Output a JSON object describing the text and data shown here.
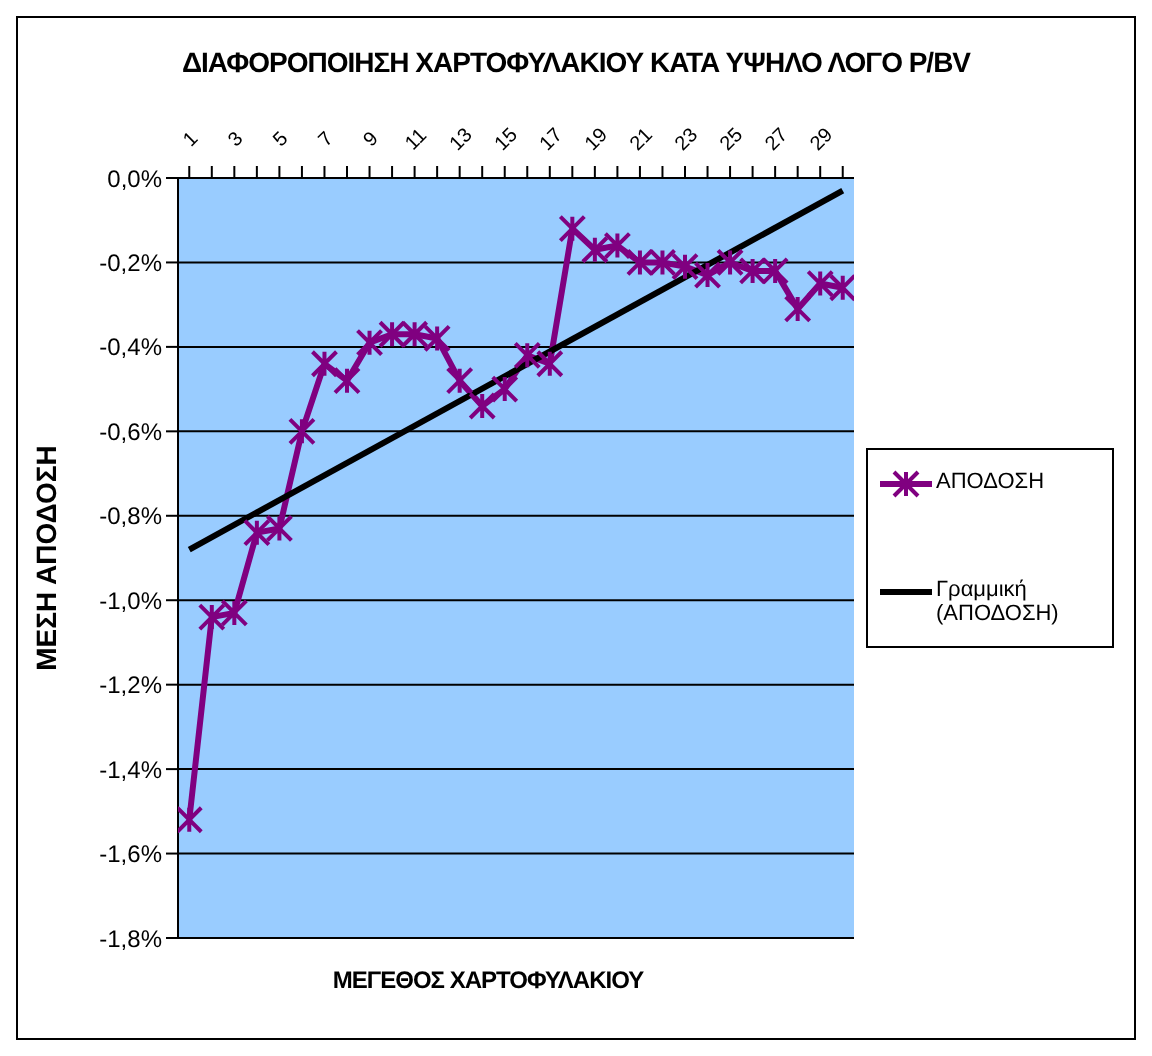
{
  "chart_data": {
    "type": "line",
    "title": "ΔΙΑΦΟΡΟΠΟΙΗΣΗ ΧΑΡΤΟΦΥΛΑΚΙΟΥ ΚΑΤΑ ΥΨΗΛΟ ΛΟΓΟ P/BV",
    "xlabel": "ΜΕΓΕΘΟΣ ΧΑΡΤΟΦΥΛΑΚΙΟΥ",
    "ylabel": "ΜΕΣΗ ΑΠΟΔΟΣΗ",
    "xlim": [
      0.5,
      30.5
    ],
    "xticks": [
      1,
      {
        "value": 2,
        "label": null
      },
      3,
      {
        "value": 4,
        "label": null
      },
      5,
      {
        "value": 6,
        "label": null
      },
      7,
      {
        "value": 8,
        "label": null
      },
      9,
      {
        "value": 10,
        "label": null
      },
      11,
      {
        "value": 12,
        "label": null
      },
      13,
      {
        "value": 14,
        "label": null
      },
      15,
      {
        "value": 16,
        "label": null
      },
      17,
      {
        "value": 18,
        "label": null
      },
      19,
      {
        "value": 20,
        "label": null
      },
      21,
      {
        "value": 22,
        "label": null
      },
      23,
      {
        "value": 24,
        "label": null
      },
      25,
      {
        "value": 26,
        "label": null
      },
      27,
      {
        "value": 28,
        "label": null
      },
      29,
      {
        "value": 30,
        "label": null
      }
    ],
    "ylim": [
      -1.8,
      0
    ],
    "yticks": [
      {
        "value": 0,
        "label": "0,0%"
      },
      {
        "value": -0.2,
        "label": "-0,2%"
      },
      {
        "value": -0.4,
        "label": "-0,4%"
      },
      {
        "value": -0.6,
        "label": "-0,6%"
      },
      {
        "value": -0.8,
        "label": "-0,8%"
      },
      {
        "value": -1.0,
        "label": "-1,0%"
      },
      {
        "value": -1.2,
        "label": "-1,2%"
      },
      {
        "value": -1.4,
        "label": "-1,4%"
      },
      {
        "value": -1.6,
        "label": "-1,6%"
      },
      {
        "value": -1.8,
        "label": "-1,8%"
      }
    ],
    "grid": "y",
    "legend": "right",
    "series": [
      {
        "name": "ΑΠΟΔΟΣΗ",
        "color": "#800080",
        "marker": "cross",
        "x": [
          1,
          2,
          3,
          4,
          5,
          6,
          7,
          8,
          9,
          10,
          11,
          12,
          13,
          14,
          15,
          16,
          17,
          18,
          19,
          20,
          21,
          22,
          23,
          24,
          25,
          26,
          27,
          28,
          29,
          30
        ],
        "values": [
          -1.52,
          -1.04,
          -1.03,
          -0.84,
          -0.83,
          -0.6,
          -0.44,
          -0.48,
          -0.39,
          -0.37,
          -0.37,
          -0.38,
          -0.48,
          -0.54,
          -0.5,
          -0.42,
          -0.44,
          -0.12,
          -0.17,
          -0.16,
          -0.2,
          -0.2,
          -0.21,
          -0.23,
          -0.2,
          -0.22,
          -0.22,
          -0.31,
          -0.25,
          -0.26
        ]
      },
      {
        "name": "Γραμμική (ΑΠΟΔΟΣΗ)",
        "type": "line",
        "color": "#000000",
        "marker": "none",
        "x": [
          1,
          30
        ],
        "values": [
          -0.88,
          -0.03
        ]
      }
    ]
  }
}
